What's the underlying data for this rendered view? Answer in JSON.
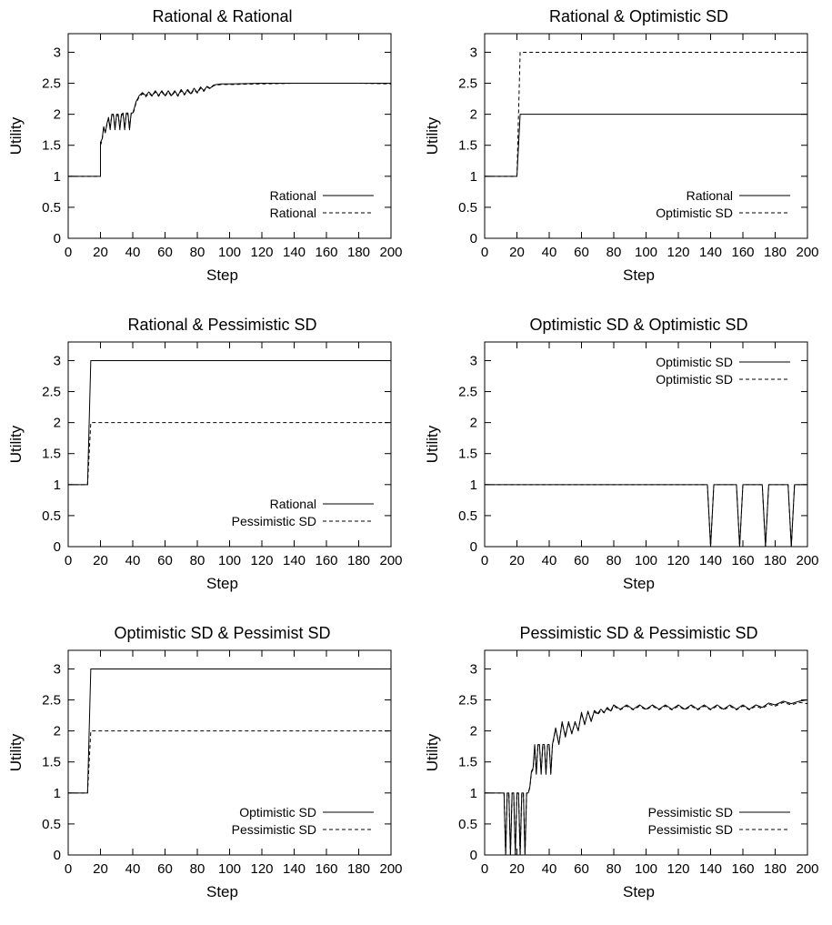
{
  "chart_data": [
    {
      "type": "line",
      "title": "Rational & Rational",
      "xlabel": "Step",
      "ylabel": "Utility",
      "xlim": [
        0,
        200
      ],
      "ylim": [
        0,
        3.3
      ],
      "xticks": [
        0,
        20,
        40,
        60,
        80,
        100,
        120,
        140,
        160,
        180,
        200
      ],
      "yticks": [
        0,
        0.5,
        1,
        1.5,
        2,
        2.5,
        3
      ],
      "legend_position": "bottom-right",
      "series": [
        {
          "name": "Rational",
          "style": "solid",
          "x": [
            0,
            20,
            20,
            21,
            22,
            23,
            24,
            25,
            26,
            27,
            28,
            29,
            30,
            31,
            32,
            33,
            34,
            35,
            36,
            37,
            38,
            39,
            40,
            41,
            42,
            44,
            46,
            48,
            50,
            52,
            54,
            56,
            58,
            60,
            62,
            64,
            66,
            68,
            70,
            72,
            74,
            76,
            78,
            80,
            82,
            84,
            86,
            88,
            90,
            92,
            95,
            100,
            120,
            140,
            160,
            180,
            200
          ],
          "y": [
            1,
            1,
            1.55,
            1.6,
            1.8,
            1.7,
            1.85,
            1.95,
            1.75,
            2.0,
            2.0,
            1.75,
            2.0,
            2.0,
            1.75,
            2.0,
            2.02,
            1.75,
            2.02,
            2.02,
            1.75,
            2.02,
            2.02,
            2.1,
            2.2,
            2.3,
            2.35,
            2.3,
            2.36,
            2.3,
            2.38,
            2.3,
            2.38,
            2.3,
            2.38,
            2.3,
            2.38,
            2.3,
            2.4,
            2.32,
            2.4,
            2.33,
            2.42,
            2.35,
            2.44,
            2.38,
            2.45,
            2.42,
            2.47,
            2.48,
            2.49,
            2.49,
            2.5,
            2.5,
            2.5,
            2.5,
            2.5
          ]
        },
        {
          "name": "Rational",
          "style": "dashed",
          "x": [
            0,
            20,
            20,
            21,
            22,
            23,
            24,
            25,
            26,
            27,
            28,
            29,
            30,
            31,
            32,
            33,
            34,
            35,
            36,
            37,
            38,
            39,
            40,
            41,
            42,
            44,
            46,
            48,
            50,
            52,
            54,
            56,
            58,
            60,
            62,
            64,
            66,
            68,
            70,
            72,
            74,
            76,
            78,
            80,
            82,
            84,
            86,
            88,
            90,
            92,
            95,
            100,
            120,
            140,
            160,
            180,
            200
          ],
          "y": [
            1,
            1,
            1.5,
            1.58,
            1.78,
            1.72,
            1.83,
            1.93,
            1.78,
            1.98,
            1.98,
            1.78,
            1.98,
            1.98,
            1.78,
            1.98,
            2.0,
            1.78,
            2.0,
            2.0,
            1.78,
            2.0,
            2.0,
            2.08,
            2.18,
            2.28,
            2.33,
            2.28,
            2.34,
            2.29,
            2.36,
            2.29,
            2.36,
            2.29,
            2.36,
            2.29,
            2.36,
            2.29,
            2.38,
            2.31,
            2.38,
            2.32,
            2.4,
            2.34,
            2.42,
            2.37,
            2.44,
            2.41,
            2.46,
            2.47,
            2.48,
            2.48,
            2.49,
            2.5,
            2.5,
            2.5,
            2.49
          ]
        }
      ]
    },
    {
      "type": "line",
      "title": "Rational & Optimistic SD",
      "xlabel": "Step",
      "ylabel": "Utility",
      "xlim": [
        0,
        200
      ],
      "ylim": [
        0,
        3.3
      ],
      "xticks": [
        0,
        20,
        40,
        60,
        80,
        100,
        120,
        140,
        160,
        180,
        200
      ],
      "yticks": [
        0,
        0.5,
        1,
        1.5,
        2,
        2.5,
        3
      ],
      "legend_position": "bottom-right",
      "series": [
        {
          "name": "Rational",
          "style": "solid",
          "x": [
            0,
            20,
            22,
            200
          ],
          "y": [
            1,
            1,
            2,
            2
          ]
        },
        {
          "name": "Optimistic SD",
          "style": "dashed",
          "x": [
            0,
            20,
            22,
            200
          ],
          "y": [
            1,
            1,
            3,
            3
          ]
        }
      ]
    },
    {
      "type": "line",
      "title": "Rational & Pessimistic SD",
      "xlabel": "Step",
      "ylabel": "Utility",
      "xlim": [
        0,
        200
      ],
      "ylim": [
        0,
        3.3
      ],
      "xticks": [
        0,
        20,
        40,
        60,
        80,
        100,
        120,
        140,
        160,
        180,
        200
      ],
      "yticks": [
        0,
        0.5,
        1,
        1.5,
        2,
        2.5,
        3
      ],
      "legend_position": "bottom-right",
      "series": [
        {
          "name": "Rational",
          "style": "solid",
          "x": [
            0,
            12,
            14,
            200
          ],
          "y": [
            1,
            1,
            3,
            3
          ]
        },
        {
          "name": "Pessimistic SD",
          "style": "dashed",
          "x": [
            0,
            12,
            14,
            200
          ],
          "y": [
            1,
            1,
            2,
            2
          ]
        }
      ]
    },
    {
      "type": "line",
      "title": "Optimistic SD & Optimistic SD",
      "xlabel": "Step",
      "ylabel": "Utility",
      "xlim": [
        0,
        200
      ],
      "ylim": [
        0,
        3.3
      ],
      "xticks": [
        0,
        20,
        40,
        60,
        80,
        100,
        120,
        140,
        160,
        180,
        200
      ],
      "yticks": [
        0,
        0.5,
        1,
        1.5,
        2,
        2.5,
        3
      ],
      "legend_position": "top-right",
      "series": [
        {
          "name": "Optimistic SD",
          "style": "solid",
          "x": [
            0,
            138,
            140,
            142,
            156,
            158,
            160,
            172,
            174,
            176,
            188,
            190,
            192,
            200
          ],
          "y": [
            1,
            1,
            0,
            1,
            1,
            0,
            1,
            1,
            0,
            1,
            1,
            0,
            1,
            1
          ]
        },
        {
          "name": "Optimistic SD",
          "style": "dashed",
          "x": [
            0,
            138,
            140,
            142,
            156,
            158,
            160,
            172,
            174,
            176,
            188,
            190,
            192,
            200
          ],
          "y": [
            1,
            1,
            0,
            1,
            1,
            0,
            1,
            1,
            0,
            1,
            1,
            0,
            1,
            1
          ]
        }
      ]
    },
    {
      "type": "line",
      "title": "Optimistic SD & Pessimist SD",
      "xlabel": "Step",
      "ylabel": "Utility",
      "xlim": [
        0,
        200
      ],
      "ylim": [
        0,
        3.3
      ],
      "xticks": [
        0,
        20,
        40,
        60,
        80,
        100,
        120,
        140,
        160,
        180,
        200
      ],
      "yticks": [
        0,
        0.5,
        1,
        1.5,
        2,
        2.5,
        3
      ],
      "legend_position": "bottom-right",
      "series": [
        {
          "name": "Optimistic SD",
          "style": "solid",
          "x": [
            0,
            12,
            14,
            200
          ],
          "y": [
            1,
            1,
            3,
            3
          ]
        },
        {
          "name": "Pessimistic SD",
          "style": "dashed",
          "x": [
            0,
            12,
            14,
            200
          ],
          "y": [
            1,
            1,
            2,
            2
          ]
        }
      ]
    },
    {
      "type": "line",
      "title": "Pessimistic SD & Pessimistic SD",
      "xlabel": "Step",
      "ylabel": "Utility",
      "xlim": [
        0,
        200
      ],
      "ylim": [
        0,
        3.3
      ],
      "xticks": [
        0,
        20,
        40,
        60,
        80,
        100,
        120,
        140,
        160,
        180,
        200
      ],
      "yticks": [
        0,
        0.5,
        1,
        1.5,
        2,
        2.5,
        3
      ],
      "legend_position": "bottom-right",
      "series": [
        {
          "name": "Pessimistic SD",
          "style": "solid",
          "x": [
            0,
            12,
            13,
            14,
            15,
            16,
            17,
            18,
            19,
            20,
            21,
            22,
            23,
            24,
            25,
            26,
            27,
            28,
            29,
            30,
            31,
            32,
            33,
            34,
            35,
            36,
            37,
            38,
            39,
            40,
            41,
            42,
            44,
            46,
            48,
            50,
            52,
            54,
            56,
            58,
            60,
            62,
            64,
            66,
            68,
            70,
            72,
            74,
            76,
            78,
            80,
            84,
            88,
            92,
            96,
            100,
            104,
            108,
            112,
            116,
            120,
            124,
            128,
            132,
            136,
            140,
            144,
            148,
            152,
            156,
            160,
            164,
            168,
            172,
            176,
            180,
            185,
            190,
            195,
            200
          ],
          "y": [
            1,
            1,
            0,
            1,
            1,
            0,
            1,
            1,
            0,
            1,
            1,
            0,
            1,
            1,
            0,
            1,
            1,
            1.1,
            1.35,
            1.4,
            1.78,
            1.3,
            1.78,
            1.78,
            1.3,
            1.78,
            1.78,
            1.3,
            1.78,
            1.78,
            1.3,
            1.78,
            2.05,
            1.78,
            2.15,
            1.9,
            2.15,
            1.95,
            2.15,
            2.0,
            2.3,
            2.1,
            2.32,
            2.15,
            2.33,
            2.28,
            2.35,
            2.3,
            2.38,
            2.32,
            2.42,
            2.35,
            2.42,
            2.35,
            2.42,
            2.35,
            2.42,
            2.35,
            2.42,
            2.35,
            2.42,
            2.35,
            2.42,
            2.35,
            2.42,
            2.35,
            2.42,
            2.35,
            2.42,
            2.35,
            2.42,
            2.35,
            2.42,
            2.38,
            2.45,
            2.42,
            2.48,
            2.44,
            2.48,
            2.5
          ]
        },
        {
          "name": "Pessimistic SD",
          "style": "dashed",
          "x": [
            0,
            12,
            13,
            14,
            15,
            16,
            17,
            18,
            19,
            20,
            21,
            22,
            23,
            24,
            25,
            26,
            27,
            28,
            29,
            30,
            31,
            32,
            33,
            34,
            35,
            36,
            37,
            38,
            39,
            40,
            41,
            42,
            44,
            46,
            48,
            50,
            52,
            54,
            56,
            58,
            60,
            62,
            64,
            66,
            68,
            70,
            72,
            74,
            76,
            78,
            80,
            84,
            88,
            92,
            96,
            100,
            104,
            108,
            112,
            116,
            120,
            124,
            128,
            132,
            136,
            140,
            144,
            148,
            152,
            156,
            160,
            164,
            168,
            172,
            176,
            180,
            185,
            190,
            195,
            200
          ],
          "y": [
            1,
            1,
            0,
            1,
            1,
            0,
            1,
            1,
            0,
            1,
            1,
            0,
            1,
            1,
            0,
            1,
            1,
            1.08,
            1.33,
            1.38,
            1.76,
            1.32,
            1.76,
            1.76,
            1.32,
            1.76,
            1.76,
            1.32,
            1.76,
            1.76,
            1.32,
            1.76,
            2.03,
            1.8,
            2.13,
            1.92,
            2.13,
            1.97,
            2.13,
            2.02,
            2.28,
            2.12,
            2.3,
            2.17,
            2.31,
            2.26,
            2.33,
            2.29,
            2.36,
            2.31,
            2.4,
            2.34,
            2.4,
            2.34,
            2.4,
            2.34,
            2.4,
            2.34,
            2.4,
            2.34,
            2.4,
            2.34,
            2.4,
            2.34,
            2.4,
            2.34,
            2.4,
            2.34,
            2.4,
            2.34,
            2.4,
            2.34,
            2.4,
            2.36,
            2.43,
            2.4,
            2.46,
            2.42,
            2.46,
            2.44
          ]
        }
      ]
    }
  ]
}
